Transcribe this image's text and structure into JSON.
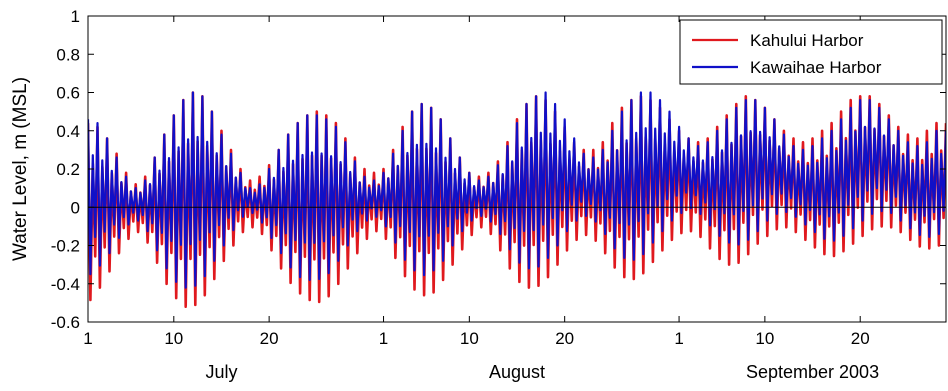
{
  "chart_data": {
    "type": "line",
    "title": "",
    "xlabel": "",
    "ylabel": "Water Level, m (MSL)",
    "ylim": [
      -0.6,
      1
    ],
    "y_ticks": [
      "1",
      "0.8",
      "0.6",
      "0.4",
      "0.2",
      "0",
      "-0.2",
      "-0.4",
      "-0.6"
    ],
    "x_range_days": [
      "2003-07-01",
      "2003-09-29"
    ],
    "x_tick_days": [
      "2003-07-01",
      "2003-07-10",
      "2003-07-20",
      "2003-08-01",
      "2003-08-10",
      "2003-08-20",
      "2003-09-01",
      "2003-09-10",
      "2003-09-20"
    ],
    "x_tick_labels": [
      "1",
      "10",
      "20",
      "1",
      "10",
      "20",
      "1",
      "10",
      "20"
    ],
    "month_labels": [
      {
        "text": "July",
        "date": "2003-07-15"
      },
      {
        "text": "August",
        "date": "2003-08-15"
      },
      {
        "text": "September 2003",
        "date": "2003-09-15"
      }
    ],
    "grid": false,
    "zero_line": true,
    "legend_position": "top-right",
    "series": [
      {
        "name": "Kahului Harbor",
        "color": "#e0191e",
        "sampling": "daily (approximate higher/lower tidal extremes)",
        "date_start": "2003-07-01",
        "upper_values": [
          0.44,
          0.42,
          0.36,
          0.28,
          0.18,
          0.12,
          0.16,
          0.26,
          0.38,
          0.48,
          0.56,
          0.6,
          0.58,
          0.5,
          0.4,
          0.3,
          0.2,
          0.14,
          0.16,
          0.22,
          0.3,
          0.38,
          0.44,
          0.48,
          0.5,
          0.48,
          0.44,
          0.36,
          0.26,
          0.2,
          0.18,
          0.2,
          0.3,
          0.42,
          0.5,
          0.54,
          0.52,
          0.46,
          0.36,
          0.26,
          0.18,
          0.16,
          0.18,
          0.24,
          0.34,
          0.46,
          0.54,
          0.58,
          0.56,
          0.5,
          0.42,
          0.34,
          0.3,
          0.3,
          0.34,
          0.44,
          0.52,
          0.56,
          0.58,
          0.56,
          0.52,
          0.46,
          0.4,
          0.36,
          0.34,
          0.36,
          0.42,
          0.48,
          0.54,
          0.58,
          0.56,
          0.52,
          0.46,
          0.4,
          0.36,
          0.34,
          0.36,
          0.4,
          0.44,
          0.5,
          0.56,
          0.58,
          0.58,
          0.54,
          0.48,
          0.42,
          0.38,
          0.36,
          0.4,
          0.44
        ],
        "lower_values": [
          -0.5,
          -0.44,
          -0.36,
          -0.26,
          -0.18,
          -0.12,
          -0.16,
          -0.26,
          -0.38,
          -0.46,
          -0.52,
          -0.52,
          -0.48,
          -0.4,
          -0.3,
          -0.22,
          -0.14,
          -0.1,
          -0.12,
          -0.2,
          -0.3,
          -0.38,
          -0.44,
          -0.48,
          -0.5,
          -0.48,
          -0.42,
          -0.34,
          -0.26,
          -0.18,
          -0.12,
          -0.14,
          -0.24,
          -0.34,
          -0.42,
          -0.46,
          -0.46,
          -0.4,
          -0.32,
          -0.24,
          -0.16,
          -0.1,
          -0.12,
          -0.2,
          -0.3,
          -0.38,
          -0.42,
          -0.42,
          -0.38,
          -0.32,
          -0.24,
          -0.18,
          -0.14,
          -0.16,
          -0.22,
          -0.3,
          -0.36,
          -0.38,
          -0.36,
          -0.3,
          -0.24,
          -0.18,
          -0.14,
          -0.12,
          -0.14,
          -0.2,
          -0.26,
          -0.3,
          -0.3,
          -0.26,
          -0.2,
          -0.16,
          -0.12,
          -0.1,
          -0.12,
          -0.16,
          -0.2,
          -0.24,
          -0.26,
          -0.24,
          -0.2,
          -0.16,
          -0.12,
          -0.1,
          -0.1,
          -0.12,
          -0.16,
          -0.2,
          -0.22,
          -0.2
        ]
      },
      {
        "name": "Kawaihae Harbor",
        "color": "#1010c8",
        "sampling": "daily (approximate higher/lower tidal extremes)",
        "date_start": "2003-07-01",
        "upper_values": [
          0.46,
          0.44,
          0.36,
          0.26,
          0.16,
          0.1,
          0.14,
          0.26,
          0.38,
          0.48,
          0.56,
          0.6,
          0.58,
          0.5,
          0.38,
          0.28,
          0.18,
          0.1,
          0.12,
          0.2,
          0.3,
          0.38,
          0.44,
          0.48,
          0.48,
          0.46,
          0.42,
          0.34,
          0.24,
          0.16,
          0.14,
          0.18,
          0.28,
          0.4,
          0.5,
          0.54,
          0.52,
          0.46,
          0.36,
          0.26,
          0.18,
          0.14,
          0.16,
          0.22,
          0.32,
          0.44,
          0.54,
          0.58,
          0.6,
          0.54,
          0.46,
          0.36,
          0.28,
          0.26,
          0.3,
          0.4,
          0.5,
          0.56,
          0.6,
          0.6,
          0.56,
          0.5,
          0.42,
          0.36,
          0.32,
          0.34,
          0.4,
          0.46,
          0.52,
          0.56,
          0.56,
          0.52,
          0.46,
          0.38,
          0.32,
          0.3,
          0.32,
          0.36,
          0.4,
          0.46,
          0.52,
          0.56,
          0.56,
          0.52,
          0.46,
          0.4,
          0.34,
          0.32,
          0.34,
          0.4
        ],
        "lower_values": [
          -0.36,
          -0.32,
          -0.26,
          -0.18,
          -0.1,
          -0.06,
          -0.1,
          -0.2,
          -0.3,
          -0.38,
          -0.42,
          -0.42,
          -0.38,
          -0.3,
          -0.22,
          -0.14,
          -0.06,
          -0.02,
          -0.06,
          -0.14,
          -0.22,
          -0.3,
          -0.36,
          -0.38,
          -0.38,
          -0.36,
          -0.3,
          -0.22,
          -0.14,
          -0.08,
          -0.04,
          -0.08,
          -0.16,
          -0.26,
          -0.32,
          -0.36,
          -0.34,
          -0.3,
          -0.22,
          -0.14,
          -0.08,
          -0.04,
          -0.06,
          -0.12,
          -0.2,
          -0.28,
          -0.32,
          -0.32,
          -0.28,
          -0.22,
          -0.14,
          -0.08,
          -0.04,
          -0.06,
          -0.12,
          -0.2,
          -0.26,
          -0.28,
          -0.26,
          -0.2,
          -0.14,
          -0.08,
          -0.04,
          0.0,
          -0.02,
          -0.08,
          -0.14,
          -0.18,
          -0.2,
          -0.18,
          -0.14,
          -0.08,
          -0.04,
          -0.02,
          -0.04,
          -0.08,
          -0.12,
          -0.16,
          -0.18,
          -0.16,
          -0.12,
          -0.08,
          -0.04,
          -0.02,
          -0.02,
          -0.06,
          -0.1,
          -0.14,
          -0.16,
          -0.14
        ]
      }
    ]
  }
}
